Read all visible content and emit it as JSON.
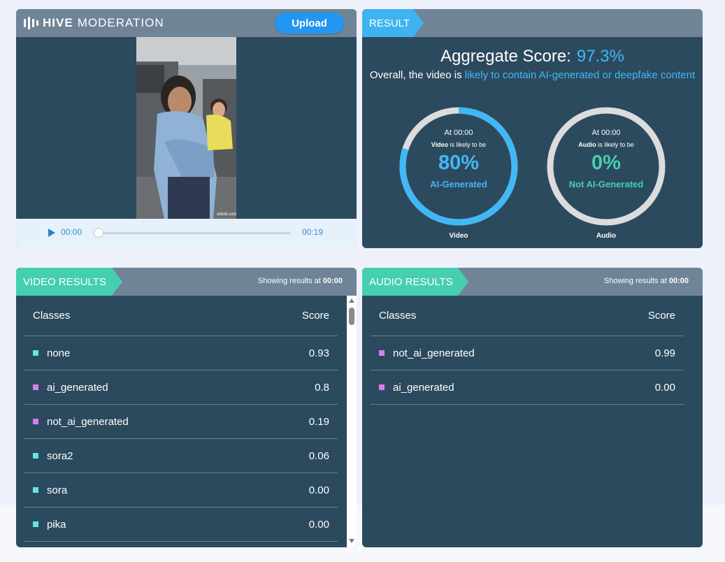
{
  "header": {
    "logo_bold": "HIVE",
    "logo_light": "MODERATION",
    "upload_label": "Upload"
  },
  "player": {
    "current_time": "00:00",
    "duration": "00:19",
    "progress": 0
  },
  "result": {
    "tab_label": "RESULT",
    "aggregate_label": "Aggregate Score:",
    "aggregate_value": "97.3%",
    "overall_prefix": "Overall, the video is",
    "overall_highlight": "likely to contain AI-generated or deepfake content",
    "gauges": [
      {
        "at": "At 00:00",
        "subject": "Video",
        "likely": "is likely to be",
        "percent": "80%",
        "fraction": 0.8,
        "verdict": "AI-Generated",
        "name": "Video",
        "color": "#41b8f5"
      },
      {
        "at": "At 00:00",
        "subject": "Audio",
        "likely": "is likely to be",
        "percent": "0%",
        "fraction": 0,
        "verdict": "Not AI-Generated",
        "name": "Audio",
        "color": "#45cfb0"
      }
    ]
  },
  "video_results": {
    "tab_label": "VIDEO RESULTS",
    "showing_prefix": "Showing results at",
    "showing_time": "00:00",
    "col_classes": "Classes",
    "col_score": "Score",
    "rows": [
      {
        "cls": "none",
        "score": "0.93",
        "color": "#62e6e2"
      },
      {
        "cls": "ai_generated",
        "score": "0.8",
        "color": "#d57ff0"
      },
      {
        "cls": "not_ai_generated",
        "score": "0.19",
        "color": "#d57ff0"
      },
      {
        "cls": "sora2",
        "score": "0.06",
        "color": "#62e6e2"
      },
      {
        "cls": "sora",
        "score": "0.00",
        "color": "#62e6e2"
      },
      {
        "cls": "pika",
        "score": "0.00",
        "color": "#62e6e2"
      }
    ]
  },
  "audio_results": {
    "tab_label": "AUDIO RESULTS",
    "showing_prefix": "Showing results at",
    "showing_time": "00:00",
    "col_classes": "Classes",
    "col_score": "Score",
    "rows": [
      {
        "cls": "not_ai_generated",
        "score": "0.99",
        "color": "#d57ff0"
      },
      {
        "cls": "ai_generated",
        "score": "0.00",
        "color": "#d57ff0"
      }
    ]
  },
  "colors": {
    "accent_blue": "#41b8f5",
    "accent_green": "#45cfb0",
    "panel_bg": "#2c4a5e",
    "header_bg": "#6f8597"
  }
}
